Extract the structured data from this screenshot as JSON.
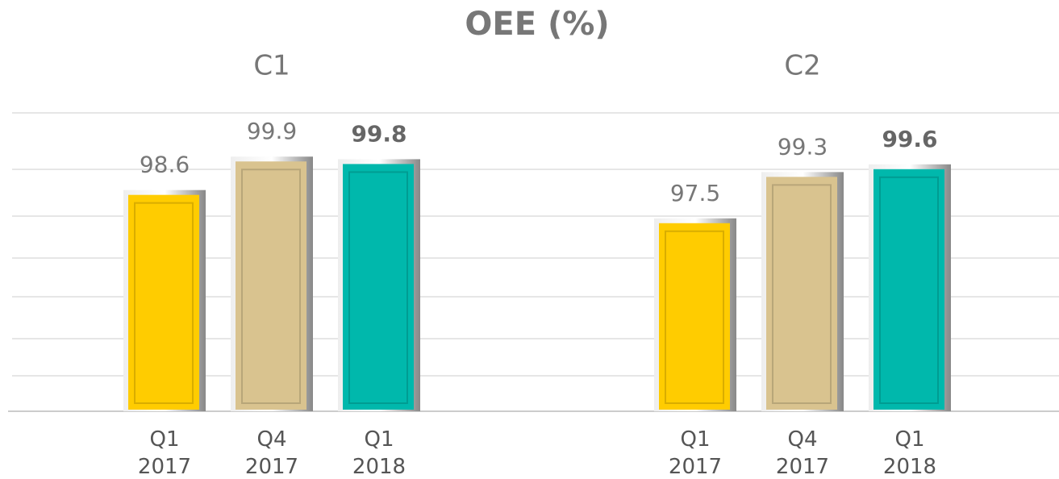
{
  "chart_data": {
    "type": "bar",
    "title": "OEE (%)",
    "categories": [
      "C1",
      "C2"
    ],
    "series": [
      {
        "name": "Q1 2017",
        "color": "#FFCC00",
        "values": [
          98.6,
          97.5
        ]
      },
      {
        "name": "Q4 2017",
        "color": "#D9C38F",
        "values": [
          99.9,
          99.3
        ]
      },
      {
        "name": "Q1 2018",
        "color": "#00B8AC",
        "values": [
          99.8,
          99.6
        ]
      }
    ],
    "ylim": [
      90,
      101.6
    ]
  }
}
